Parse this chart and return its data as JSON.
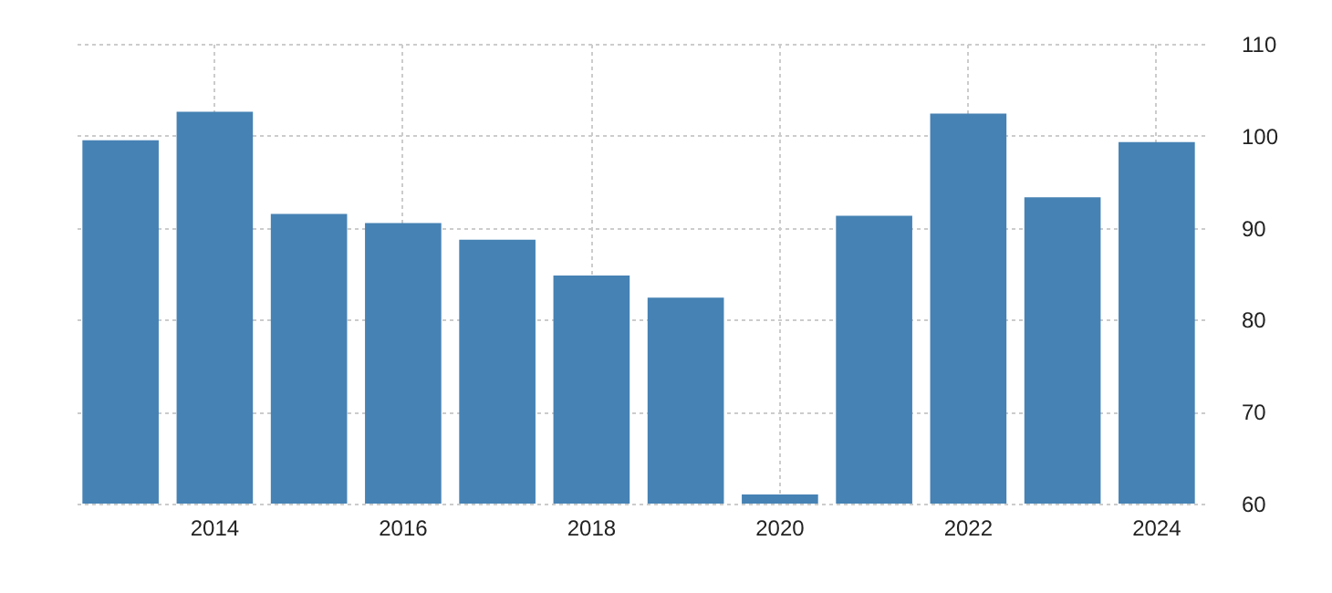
{
  "chart_data": {
    "type": "bar",
    "categories": [
      null,
      "2014",
      null,
      "2016",
      null,
      "2018",
      null,
      "2020",
      null,
      "2022",
      null,
      "2024"
    ],
    "values": [
      99.5,
      102.6,
      91.5,
      90.5,
      88.7,
      84.8,
      82.4,
      61.0,
      91.3,
      102.4,
      93.3,
      99.3
    ],
    "color": "#4682b4",
    "ylim": [
      60,
      110
    ],
    "yticks": [
      60,
      70,
      80,
      90,
      100,
      110
    ],
    "grid": true
  }
}
